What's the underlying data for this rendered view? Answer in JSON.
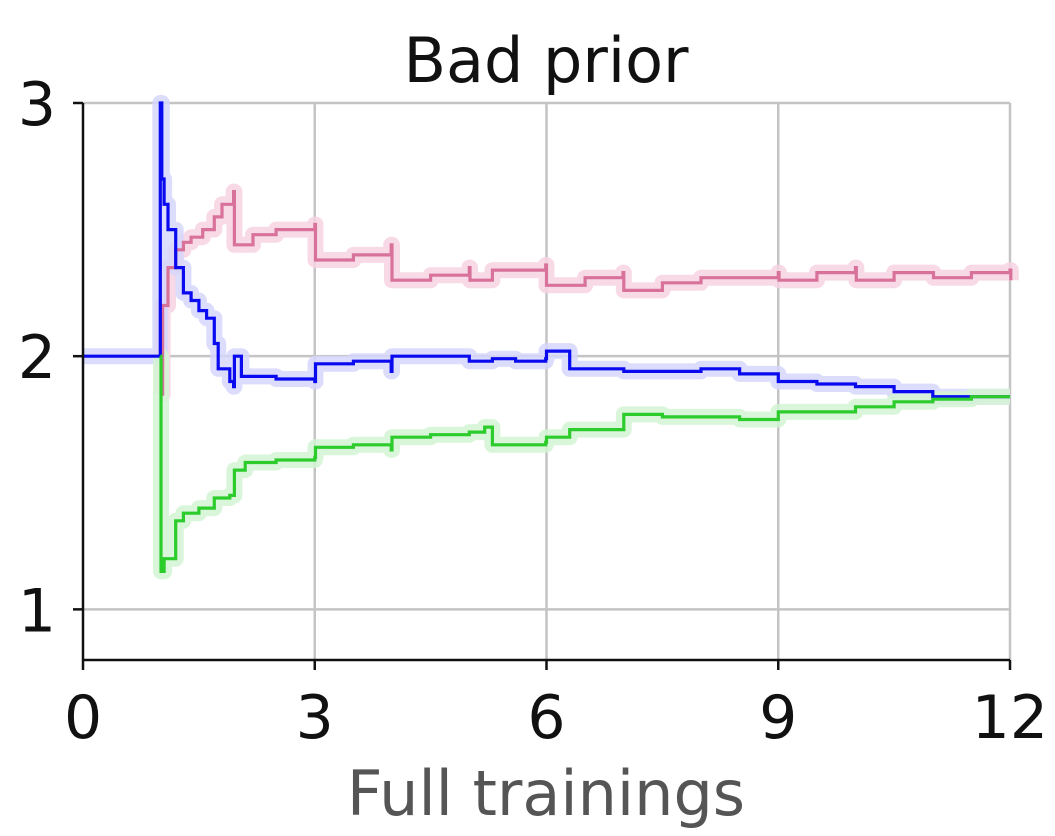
{
  "chart_data": {
    "type": "line",
    "title": "Bad prior",
    "xlabel": "Full trainings",
    "ylabel": "",
    "xlim": [
      0,
      12
    ],
    "ylim": [
      0.8,
      3
    ],
    "xticks": [
      0,
      3,
      6,
      9,
      12
    ],
    "yticks": [
      1,
      2,
      3
    ],
    "grid": true,
    "series": [
      {
        "color": "#d9729a",
        "band_color": "#f7d3e3",
        "points": [
          [
            1.0,
            1.85
          ],
          [
            1.03,
            2.2
          ],
          [
            1.1,
            2.35
          ],
          [
            1.2,
            2.42
          ],
          [
            1.3,
            2.45
          ],
          [
            1.4,
            2.47
          ],
          [
            1.55,
            2.5
          ],
          [
            1.7,
            2.55
          ],
          [
            1.8,
            2.6
          ],
          [
            1.95,
            2.65
          ],
          [
            1.96,
            2.44
          ],
          [
            2.2,
            2.48
          ],
          [
            2.5,
            2.5
          ],
          [
            3.0,
            2.52
          ],
          [
            3.01,
            2.38
          ],
          [
            3.5,
            2.4
          ],
          [
            3.99,
            2.44
          ],
          [
            4.0,
            2.3
          ],
          [
            4.5,
            2.32
          ],
          [
            5.0,
            2.35
          ],
          [
            5.01,
            2.3
          ],
          [
            5.3,
            2.34
          ],
          [
            5.99,
            2.36
          ],
          [
            6.0,
            2.28
          ],
          [
            6.5,
            2.31
          ],
          [
            6.99,
            2.33
          ],
          [
            7.0,
            2.26
          ],
          [
            7.5,
            2.29
          ],
          [
            8.0,
            2.31
          ],
          [
            8.5,
            2.31
          ],
          [
            9.0,
            2.33
          ],
          [
            9.01,
            2.3
          ],
          [
            9.5,
            2.33
          ],
          [
            10.0,
            2.35
          ],
          [
            10.01,
            2.3
          ],
          [
            10.5,
            2.33
          ],
          [
            11.0,
            2.33
          ],
          [
            11.01,
            2.31
          ],
          [
            11.5,
            2.33
          ],
          [
            12.0,
            2.34
          ],
          [
            12.01,
            2.3
          ]
        ]
      },
      {
        "color": "#0a0af0",
        "band_color": "#d6d6fb",
        "points": [
          [
            0.0,
            2.0
          ],
          [
            0.99,
            2.0
          ],
          [
            1.0,
            3.0
          ],
          [
            1.02,
            2.7
          ],
          [
            1.05,
            2.6
          ],
          [
            1.1,
            2.5
          ],
          [
            1.2,
            2.35
          ],
          [
            1.3,
            2.25
          ],
          [
            1.4,
            2.22
          ],
          [
            1.5,
            2.18
          ],
          [
            1.6,
            2.15
          ],
          [
            1.7,
            2.05
          ],
          [
            1.75,
            1.95
          ],
          [
            1.9,
            1.9
          ],
          [
            1.95,
            1.88
          ],
          [
            1.96,
            2.0
          ],
          [
            2.05,
            1.92
          ],
          [
            2.5,
            1.91
          ],
          [
            3.0,
            1.9
          ],
          [
            3.01,
            1.97
          ],
          [
            3.5,
            1.98
          ],
          [
            3.99,
            1.94
          ],
          [
            4.0,
            2.0
          ],
          [
            4.5,
            2.0
          ],
          [
            5.0,
            1.98
          ],
          [
            5.3,
            1.99
          ],
          [
            5.6,
            1.98
          ],
          [
            5.99,
            1.99
          ],
          [
            6.0,
            2.02
          ],
          [
            6.3,
            1.95
          ],
          [
            7.0,
            1.94
          ],
          [
            7.5,
            1.94
          ],
          [
            8.0,
            1.95
          ],
          [
            8.5,
            1.93
          ],
          [
            9.0,
            1.9
          ],
          [
            9.5,
            1.89
          ],
          [
            10.0,
            1.88
          ],
          [
            10.5,
            1.86
          ],
          [
            11.0,
            1.84
          ],
          [
            11.5,
            1.84
          ],
          [
            12.0,
            1.84
          ]
        ]
      },
      {
        "color": "#2ccc2c",
        "band_color": "#d4f5d4",
        "points": [
          [
            1.0,
            2.0
          ],
          [
            1.01,
            1.15
          ],
          [
            1.05,
            1.2
          ],
          [
            1.2,
            1.35
          ],
          [
            1.3,
            1.38
          ],
          [
            1.5,
            1.4
          ],
          [
            1.7,
            1.44
          ],
          [
            1.9,
            1.45
          ],
          [
            1.96,
            1.55
          ],
          [
            2.1,
            1.58
          ],
          [
            2.5,
            1.59
          ],
          [
            3.0,
            1.6
          ],
          [
            3.01,
            1.64
          ],
          [
            3.5,
            1.65
          ],
          [
            3.99,
            1.63
          ],
          [
            4.0,
            1.68
          ],
          [
            4.5,
            1.69
          ],
          [
            5.0,
            1.7
          ],
          [
            5.2,
            1.72
          ],
          [
            5.3,
            1.65
          ],
          [
            5.99,
            1.66
          ],
          [
            6.0,
            1.68
          ],
          [
            6.3,
            1.71
          ],
          [
            7.0,
            1.77
          ],
          [
            7.5,
            1.76
          ],
          [
            8.0,
            1.76
          ],
          [
            8.5,
            1.75
          ],
          [
            9.0,
            1.78
          ],
          [
            9.5,
            1.78
          ],
          [
            10.0,
            1.8
          ],
          [
            10.5,
            1.82
          ],
          [
            11.0,
            1.83
          ],
          [
            11.5,
            1.84
          ],
          [
            12.0,
            1.84
          ]
        ]
      }
    ]
  }
}
